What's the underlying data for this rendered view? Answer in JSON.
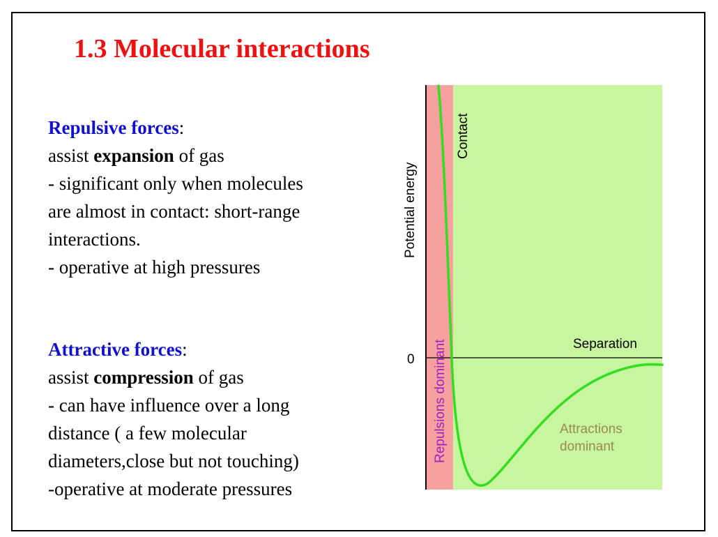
{
  "title": "1.3  Molecular interactions",
  "repulsive": {
    "heading": "Repulsive forces",
    "colon": ":",
    "line1_pre": "assist ",
    "line1_bold": "expansion",
    "line1_post": " of gas",
    "line2": "- significant only when molecules",
    "line3": "are almost in contact: short-range",
    "line4": "interactions.",
    "line5": "- operative at high pressures"
  },
  "attractive": {
    "heading": "Attractive forces",
    "colon": ":",
    "line1_pre": "assist ",
    "line1_bold": "compression",
    "line1_post": " of gas",
    "line2": "- can have influence over a long",
    "line3": "distance ( a few molecular",
    "line4": "diameters,close but not touching)",
    "line5": "-operative at moderate pressures"
  },
  "diagram": {
    "y_axis_label": "Potential energy",
    "zero_label": "0",
    "separation_label": "Separation",
    "contact_label": "Contact",
    "repulsion_label": "Repulsions dominant",
    "attraction_label_1": "Attractions",
    "attraction_label_2": "dominant",
    "colors": {
      "repulsion_region": "#f7a0a0",
      "attraction_region": "#c8f5a0",
      "curve": "#33dd22",
      "repulsion_text": "#a020c0",
      "attraction_text": "#9a8a50"
    }
  }
}
